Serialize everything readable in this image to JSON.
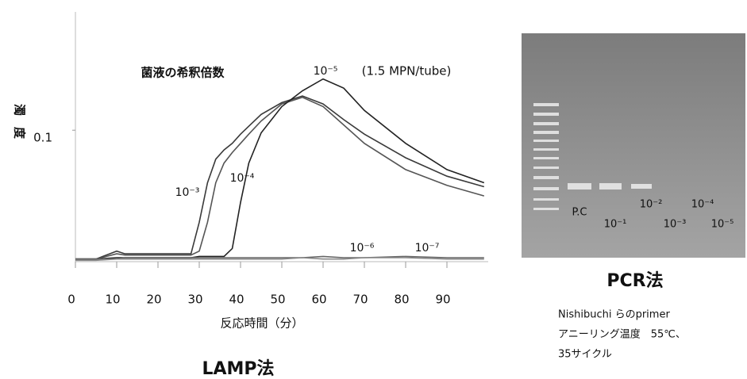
{
  "chart_data": {
    "type": "line",
    "y_label": "濁度",
    "x_label": "反応時間（分）",
    "caption": "LAMP法",
    "annotations": [
      "菌液の希釈倍数",
      "(1.5 MPN/tube)"
    ],
    "x": [
      0,
      5,
      10,
      12,
      20,
      28,
      30,
      32,
      34,
      36,
      38,
      40,
      42,
      45,
      50,
      55,
      60,
      65,
      70,
      80,
      90,
      99
    ],
    "series": [
      {
        "name": "10⁻³",
        "color": "#3a3a3a",
        "values": [
          0.002,
          0.002,
          0.008,
          0.006,
          0.006,
          0.006,
          0.03,
          0.06,
          0.078,
          0.085,
          0.09,
          0.097,
          0.103,
          0.112,
          0.121,
          0.126,
          0.12,
          0.108,
          0.097,
          0.079,
          0.065,
          0.057
        ]
      },
      {
        "name": "10⁻⁴",
        "color": "#555555",
        "values": [
          0.002,
          0.002,
          0.006,
          0.005,
          0.005,
          0.005,
          0.008,
          0.03,
          0.06,
          0.075,
          0.083,
          0.09,
          0.097,
          0.107,
          0.12,
          0.125,
          0.118,
          0.104,
          0.09,
          0.07,
          0.058,
          0.05
        ]
      },
      {
        "name": "10⁻⁵",
        "color": "#222222",
        "values": [
          0.002,
          0.002,
          0.003,
          0.003,
          0.003,
          0.003,
          0.004,
          0.004,
          0.004,
          0.004,
          0.01,
          0.045,
          0.075,
          0.098,
          0.118,
          0.13,
          0.139,
          0.132,
          0.115,
          0.09,
          0.07,
          0.06
        ]
      },
      {
        "name": "10⁻⁶",
        "color": "#666666",
        "values": [
          0.002,
          0.002,
          0.002,
          0.003,
          0.003,
          0.003,
          0.003,
          0.003,
          0.003,
          0.003,
          0.003,
          0.003,
          0.003,
          0.003,
          0.003,
          0.003,
          0.004,
          0.003,
          0.003,
          0.004,
          0.003,
          0.003
        ]
      },
      {
        "name": "10⁻⁷",
        "color": "#888888",
        "values": [
          0.001,
          0.001,
          0.002,
          0.002,
          0.002,
          0.002,
          0.002,
          0.002,
          0.002,
          0.002,
          0.002,
          0.002,
          0.002,
          0.002,
          0.002,
          0.003,
          0.002,
          0.002,
          0.003,
          0.003,
          0.002,
          0.002
        ]
      }
    ],
    "xlim": [
      0,
      100
    ],
    "xticks": [
      0,
      10,
      20,
      30,
      40,
      50,
      60,
      70,
      80,
      90
    ],
    "ylim": [
      0,
      0.19
    ],
    "yticks": [
      0.1
    ]
  },
  "gel": {
    "title": "PCR法",
    "lanes": [
      "P.C",
      "10⁻¹",
      "10⁻²",
      "10⁻³",
      "10⁻⁴",
      "10⁻⁵"
    ],
    "notes": [
      "Nishibuchi らのprimer",
      "アニーリング温度　55℃、",
      "35サイクル"
    ]
  }
}
